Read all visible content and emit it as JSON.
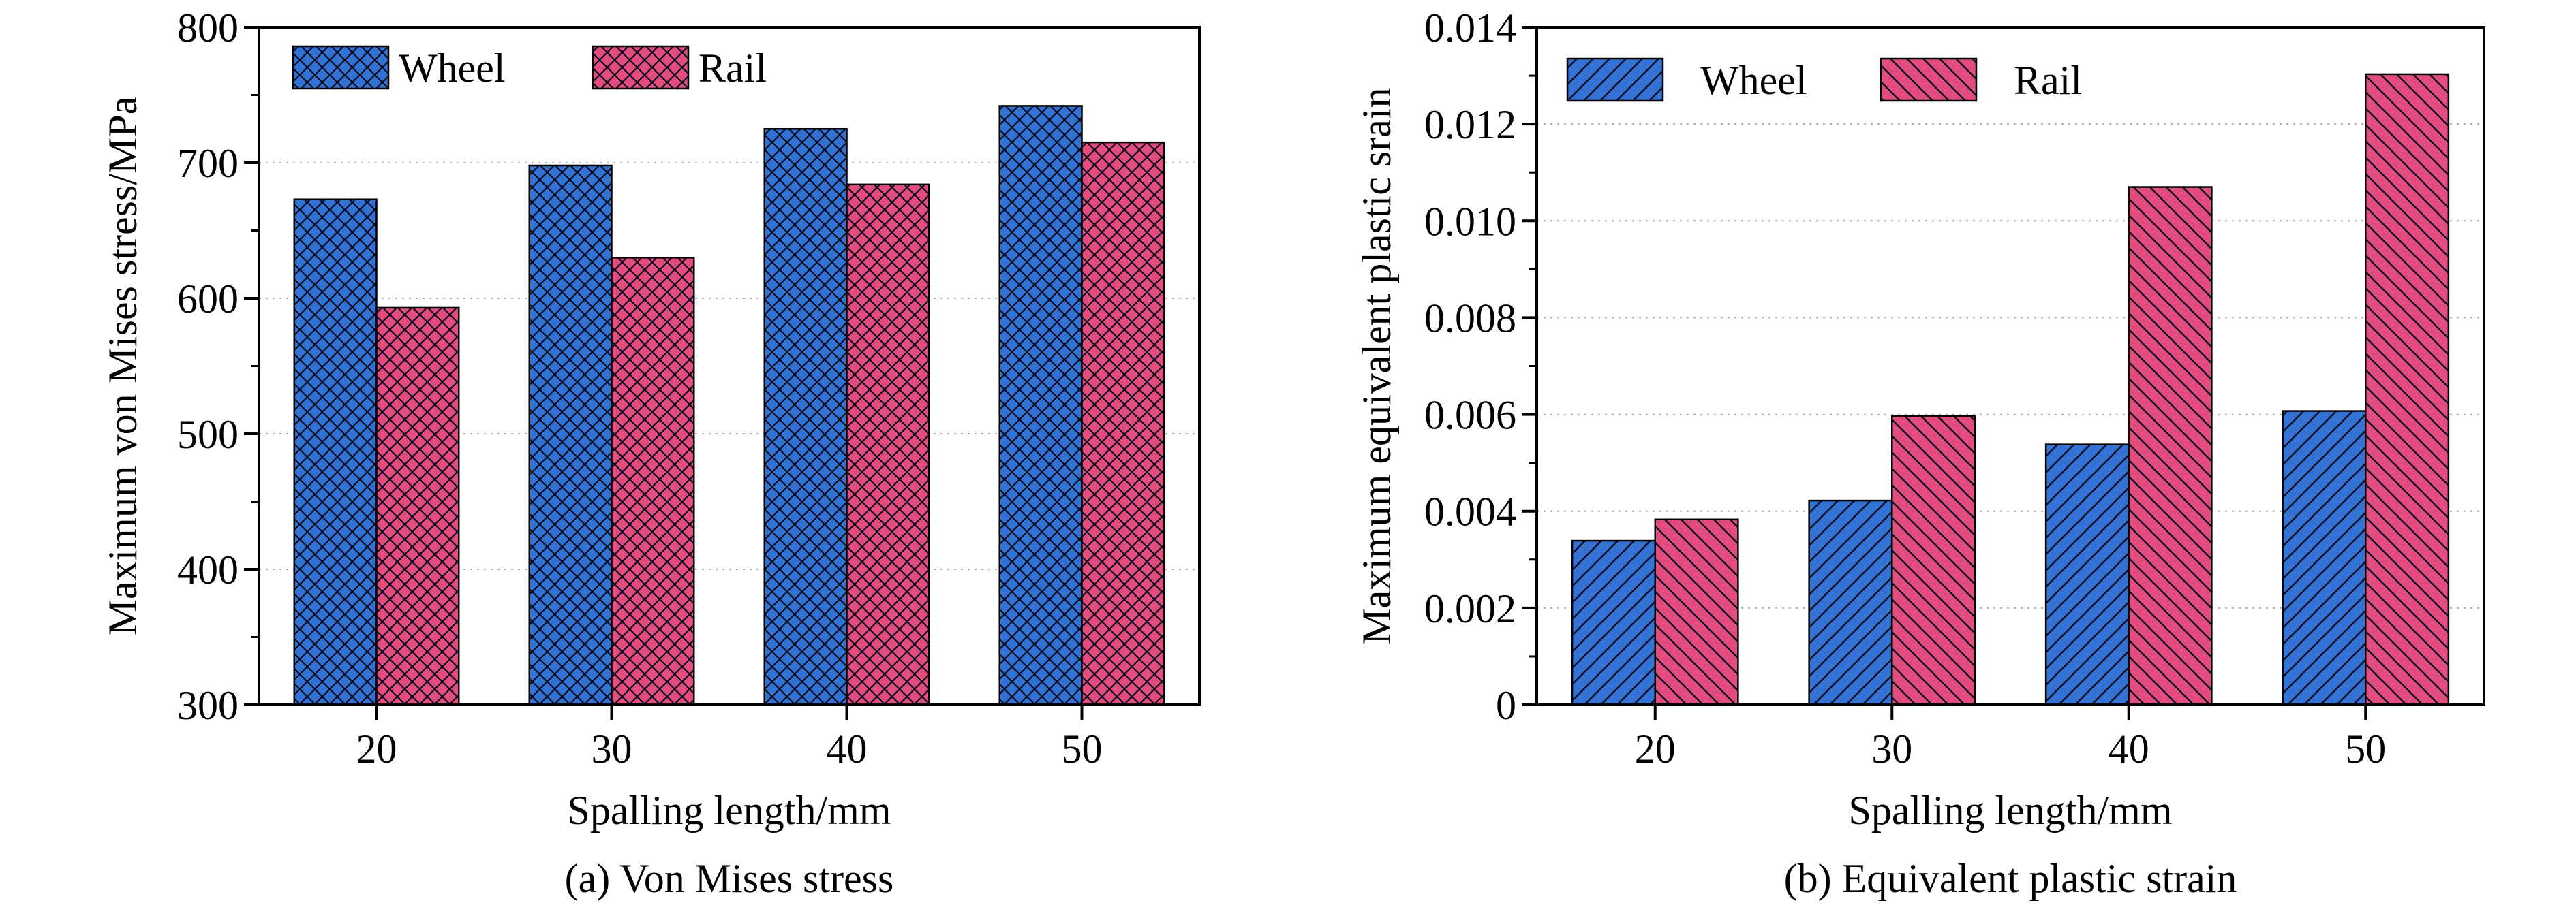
{
  "colors": {
    "wheel": "#3272d2",
    "rail": "#e24d7e",
    "hatch": "#0a0a1e",
    "axis": "#000000",
    "grid": "#b0b0b0"
  },
  "chart_data": [
    {
      "type": "bar",
      "caption": "(a) Von Mises stress",
      "xlabel": "Spalling length/mm",
      "ylabel": "Maximum von Mises stress/MPa",
      "categories": [
        "20",
        "30",
        "40",
        "50"
      ],
      "ylim": [
        300,
        800
      ],
      "yticks": [
        "300",
        "400",
        "500",
        "600",
        "700",
        "800"
      ],
      "grid": "horizontal dotted",
      "legend_position": "top-left",
      "series": [
        {
          "name": "Wheel",
          "values": [
            673,
            698,
            725,
            742
          ],
          "hatch": "crosshatch"
        },
        {
          "name": "Rail",
          "values": [
            593,
            630,
            684,
            715
          ],
          "hatch": "crosshatch"
        }
      ]
    },
    {
      "type": "bar",
      "caption": "(b) Equivalent plastic strain",
      "xlabel": "Spalling length/mm",
      "ylabel": "Maximum equivalent plastic srain",
      "categories": [
        "20",
        "30",
        "40",
        "50"
      ],
      "ylim": [
        0,
        0.014
      ],
      "yticks": [
        "0",
        "0.002",
        "0.004",
        "0.006",
        "0.008",
        "0.010",
        "0.012",
        "0.014"
      ],
      "grid": "horizontal dotted",
      "legend_position": "top-left",
      "series": [
        {
          "name": "Wheel",
          "values": [
            0.00339,
            0.00422,
            0.00538,
            0.00607
          ],
          "hatch": "forward-diagonal"
        },
        {
          "name": "Rail",
          "values": [
            0.00383,
            0.00597,
            0.0107,
            0.01303
          ],
          "hatch": "back-diagonal"
        }
      ]
    }
  ]
}
